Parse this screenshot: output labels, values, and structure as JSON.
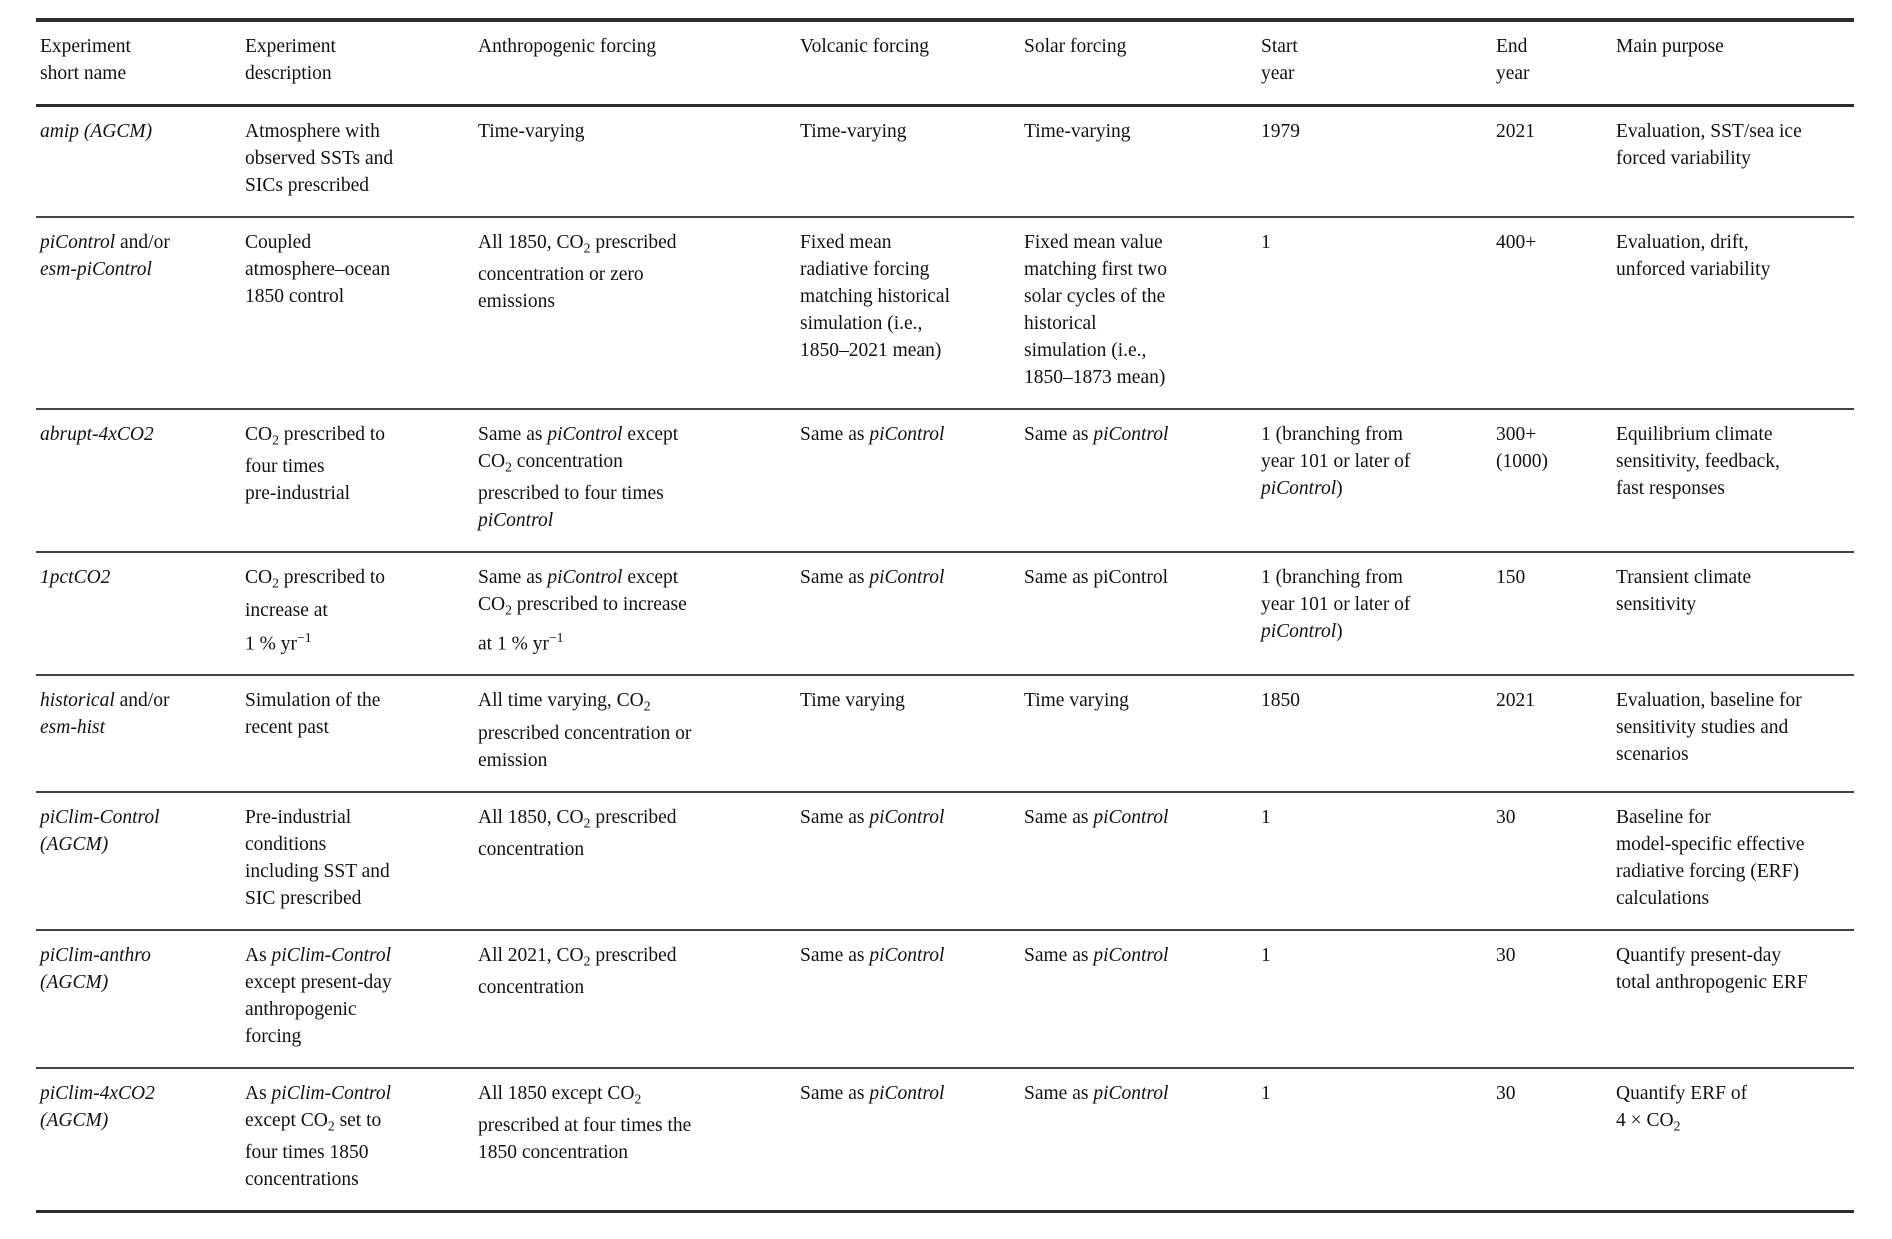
{
  "colors": {
    "background": "#ffffff",
    "text": "#111111",
    "rule_heavy": "#2c2c2c",
    "rule_light": "#434343"
  },
  "table": {
    "header": [
      [
        {
          "t": "Experiment "
        },
        {
          "br": true
        },
        {
          "t": "short name"
        }
      ],
      [
        {
          "t": "Experiment "
        },
        {
          "br": true
        },
        {
          "t": "description"
        }
      ],
      [
        {
          "t": "Anthropogenic forcing"
        }
      ],
      [
        {
          "t": "Volcanic forcing"
        }
      ],
      [
        {
          "t": "Solar forcing"
        }
      ],
      [
        {
          "t": "Start "
        },
        {
          "br": true
        },
        {
          "t": "year"
        }
      ],
      [
        {
          "t": "End "
        },
        {
          "br": true
        },
        {
          "t": "year"
        }
      ],
      [
        {
          "t": "Main purpose"
        }
      ]
    ],
    "rows": [
      {
        "cells": [
          [
            {
              "t": "amip (AGCM)",
              "s": "i"
            }
          ],
          [
            {
              "t": "Atmosphere with "
            },
            {
              "br": true
            },
            {
              "t": "observed SSTs and "
            },
            {
              "br": true
            },
            {
              "t": "SICs prescribed"
            }
          ],
          [
            {
              "t": "Time-varying"
            }
          ],
          [
            {
              "t": "Time-varying"
            }
          ],
          [
            {
              "t": "Time-varying"
            }
          ],
          [
            {
              "t": "1979"
            }
          ],
          [
            {
              "t": "2021"
            }
          ],
          [
            {
              "t": "Evaluation, SST/sea ice "
            },
            {
              "br": true
            },
            {
              "t": "forced variability"
            }
          ]
        ]
      },
      {
        "cells": [
          [
            {
              "t": "piControl",
              "s": "i"
            },
            {
              "t": " and/or "
            },
            {
              "br": true
            },
            {
              "t": "esm-piControl",
              "s": "i"
            }
          ],
          [
            {
              "t": "Coupled "
            },
            {
              "br": true
            },
            {
              "t": "atmosphere–ocean "
            },
            {
              "br": true
            },
            {
              "t": "1850 control"
            }
          ],
          [
            {
              "t": "All 1850, CO"
            },
            {
              "t": "2",
              "s": "sub"
            },
            {
              "t": " prescribed "
            },
            {
              "br": true
            },
            {
              "t": "concentration or zero "
            },
            {
              "br": true
            },
            {
              "t": "emissions"
            }
          ],
          [
            {
              "t": "Fixed mean "
            },
            {
              "br": true
            },
            {
              "t": "radiative forcing "
            },
            {
              "br": true
            },
            {
              "t": "matching historical "
            },
            {
              "br": true
            },
            {
              "t": "simulation (i.e., "
            },
            {
              "br": true
            },
            {
              "t": "1850–2021 mean)"
            }
          ],
          [
            {
              "t": "Fixed mean value "
            },
            {
              "br": true
            },
            {
              "t": "matching first two "
            },
            {
              "br": true
            },
            {
              "t": "solar cycles of the "
            },
            {
              "br": true
            },
            {
              "t": "historical "
            },
            {
              "br": true
            },
            {
              "t": "simulation (i.e., "
            },
            {
              "br": true
            },
            {
              "t": "1850–1873 mean)"
            }
          ],
          [
            {
              "t": "1"
            }
          ],
          [
            {
              "t": "400+"
            }
          ],
          [
            {
              "t": "Evaluation, drift, "
            },
            {
              "br": true
            },
            {
              "t": "unforced variability"
            }
          ]
        ]
      },
      {
        "cells": [
          [
            {
              "t": "abrupt-4xCO2",
              "s": "i"
            }
          ],
          [
            {
              "t": "CO"
            },
            {
              "t": "2",
              "s": "sub"
            },
            {
              "t": " prescribed to "
            },
            {
              "br": true
            },
            {
              "t": "four times "
            },
            {
              "br": true
            },
            {
              "t": "pre-industrial"
            }
          ],
          [
            {
              "t": "Same as "
            },
            {
              "t": "piControl",
              "s": "i"
            },
            {
              "t": " except "
            },
            {
              "br": true
            },
            {
              "t": "CO"
            },
            {
              "t": "2",
              "s": "sub"
            },
            {
              "t": " concentration "
            },
            {
              "br": true
            },
            {
              "t": "prescribed to four times "
            },
            {
              "br": true
            },
            {
              "t": "piControl",
              "s": "i"
            }
          ],
          [
            {
              "t": "Same as "
            },
            {
              "t": "piControl",
              "s": "i"
            }
          ],
          [
            {
              "t": "Same as "
            },
            {
              "t": "piControl",
              "s": "i"
            }
          ],
          [
            {
              "t": "1 (branching from "
            },
            {
              "br": true
            },
            {
              "t": "year 101 or later of "
            },
            {
              "br": true
            },
            {
              "t": "piControl",
              "s": "i"
            },
            {
              "t": ")"
            }
          ],
          [
            {
              "t": "300+ "
            },
            {
              "br": true
            },
            {
              "t": "(1000)"
            }
          ],
          [
            {
              "t": "Equilibrium climate "
            },
            {
              "br": true
            },
            {
              "t": "sensitivity, feedback, "
            },
            {
              "br": true
            },
            {
              "t": "fast responses"
            }
          ]
        ]
      },
      {
        "cells": [
          [
            {
              "t": "1pctCO2",
              "s": "i"
            }
          ],
          [
            {
              "t": "CO"
            },
            {
              "t": "2",
              "s": "sub"
            },
            {
              "t": " prescribed to "
            },
            {
              "br": true
            },
            {
              "t": "increase at "
            },
            {
              "br": true
            },
            {
              "t": "1 % yr"
            },
            {
              "t": "−1",
              "s": "sup"
            }
          ],
          [
            {
              "t": "Same as "
            },
            {
              "t": "piControl",
              "s": "i"
            },
            {
              "t": " except "
            },
            {
              "br": true
            },
            {
              "t": "CO"
            },
            {
              "t": "2",
              "s": "sub"
            },
            {
              "t": " prescribed to increase "
            },
            {
              "br": true
            },
            {
              "t": "at 1 % yr"
            },
            {
              "t": "−1",
              "s": "sup"
            }
          ],
          [
            {
              "t": "Same as "
            },
            {
              "t": "piControl",
              "s": "i"
            }
          ],
          [
            {
              "t": "Same as piControl"
            }
          ],
          [
            {
              "t": "1 (branching from "
            },
            {
              "br": true
            },
            {
              "t": "year 101 or later of "
            },
            {
              "br": true
            },
            {
              "t": "piControl",
              "s": "i"
            },
            {
              "t": ")"
            }
          ],
          [
            {
              "t": "150"
            }
          ],
          [
            {
              "t": "Transient climate "
            },
            {
              "br": true
            },
            {
              "t": "sensitivity"
            }
          ]
        ]
      },
      {
        "cells": [
          [
            {
              "t": "historical",
              "s": "i"
            },
            {
              "t": " and/or "
            },
            {
              "br": true
            },
            {
              "t": "esm-hist",
              "s": "i"
            }
          ],
          [
            {
              "t": "Simulation of the "
            },
            {
              "br": true
            },
            {
              "t": "recent past"
            }
          ],
          [
            {
              "t": "All time varying, CO"
            },
            {
              "t": "2",
              "s": "sub"
            },
            {
              "t": " "
            },
            {
              "br": true
            },
            {
              "t": "prescribed concentration or "
            },
            {
              "br": true
            },
            {
              "t": "emission"
            }
          ],
          [
            {
              "t": "Time varying"
            }
          ],
          [
            {
              "t": "Time varying"
            }
          ],
          [
            {
              "t": "1850"
            }
          ],
          [
            {
              "t": "2021"
            }
          ],
          [
            {
              "t": "Evaluation, baseline for "
            },
            {
              "br": true
            },
            {
              "t": "sensitivity studies and "
            },
            {
              "br": true
            },
            {
              "t": "scenarios"
            }
          ]
        ]
      },
      {
        "cells": [
          [
            {
              "t": "piClim-Control ",
              "s": "i"
            },
            {
              "br": true
            },
            {
              "t": "(AGCM)",
              "s": "i"
            }
          ],
          [
            {
              "t": "Pre-industrial "
            },
            {
              "br": true
            },
            {
              "t": "conditions "
            },
            {
              "br": true
            },
            {
              "t": "including SST and "
            },
            {
              "br": true
            },
            {
              "t": "SIC prescribed"
            }
          ],
          [
            {
              "t": "All 1850, CO"
            },
            {
              "t": "2",
              "s": "sub"
            },
            {
              "t": " prescribed "
            },
            {
              "br": true
            },
            {
              "t": "concentration"
            }
          ],
          [
            {
              "t": "Same as "
            },
            {
              "t": "piControl",
              "s": "i"
            }
          ],
          [
            {
              "t": "Same as "
            },
            {
              "t": "piControl",
              "s": "i"
            }
          ],
          [
            {
              "t": "1"
            }
          ],
          [
            {
              "t": "30"
            }
          ],
          [
            {
              "t": "Baseline for "
            },
            {
              "br": true
            },
            {
              "t": "model-specific effective "
            },
            {
              "br": true
            },
            {
              "t": "radiative forcing (ERF) "
            },
            {
              "br": true
            },
            {
              "t": "calculations"
            }
          ]
        ]
      },
      {
        "cells": [
          [
            {
              "t": "piClim-anthro ",
              "s": "i"
            },
            {
              "br": true
            },
            {
              "t": "(AGCM)",
              "s": "i"
            }
          ],
          [
            {
              "t": "As "
            },
            {
              "t": "piClim-Control",
              "s": "i"
            },
            {
              "t": " "
            },
            {
              "br": true
            },
            {
              "t": "except present-day "
            },
            {
              "br": true
            },
            {
              "t": "anthropogenic "
            },
            {
              "br": true
            },
            {
              "t": "forcing"
            }
          ],
          [
            {
              "t": "All 2021, CO"
            },
            {
              "t": "2",
              "s": "sub"
            },
            {
              "t": " prescribed "
            },
            {
              "br": true
            },
            {
              "t": "concentration"
            }
          ],
          [
            {
              "t": "Same as "
            },
            {
              "t": "piControl",
              "s": "i"
            }
          ],
          [
            {
              "t": "Same as "
            },
            {
              "t": "piControl",
              "s": "i"
            }
          ],
          [
            {
              "t": "1"
            }
          ],
          [
            {
              "t": "30"
            }
          ],
          [
            {
              "t": "Quantify present-day "
            },
            {
              "br": true
            },
            {
              "t": "total anthropogenic ERF"
            }
          ]
        ]
      },
      {
        "cells": [
          [
            {
              "t": "piClim-4xCO2 ",
              "s": "i"
            },
            {
              "br": true
            },
            {
              "t": "(AGCM)",
              "s": "i"
            }
          ],
          [
            {
              "t": "As "
            },
            {
              "t": "piClim-Control",
              "s": "i"
            },
            {
              "t": " "
            },
            {
              "br": true
            },
            {
              "t": "except CO"
            },
            {
              "t": "2",
              "s": "sub"
            },
            {
              "t": " set to "
            },
            {
              "br": true
            },
            {
              "t": "four times 1850 "
            },
            {
              "br": true
            },
            {
              "t": "concentrations"
            }
          ],
          [
            {
              "t": "All 1850 except CO"
            },
            {
              "t": "2",
              "s": "sub"
            },
            {
              "t": " "
            },
            {
              "br": true
            },
            {
              "t": "prescribed at four times the "
            },
            {
              "br": true
            },
            {
              "t": "1850 concentration"
            }
          ],
          [
            {
              "t": "Same as "
            },
            {
              "t": "piControl",
              "s": "i"
            }
          ],
          [
            {
              "t": "Same as "
            },
            {
              "t": "piControl",
              "s": "i"
            }
          ],
          [
            {
              "t": "1"
            }
          ],
          [
            {
              "t": "30"
            }
          ],
          [
            {
              "t": "Quantify ERF of "
            },
            {
              "br": true
            },
            {
              "t": "4 × CO"
            },
            {
              "t": "2",
              "s": "sub"
            }
          ]
        ]
      }
    ]
  }
}
